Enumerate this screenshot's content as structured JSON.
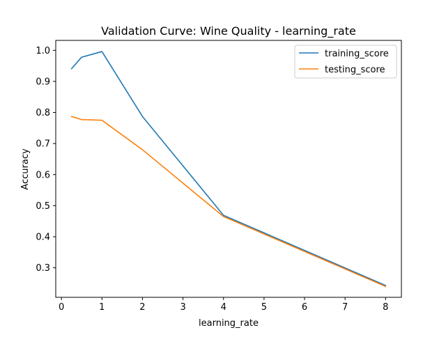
{
  "chart_data": {
    "type": "line",
    "title": "Validation Curve: Wine Quality - learning_rate",
    "xlabel": "learning_rate",
    "ylabel": "Accuracy",
    "xlim": [
      -0.14,
      8.39
    ],
    "ylim": [
      0.205,
      1.032
    ],
    "xticks": [
      0,
      1,
      2,
      3,
      4,
      5,
      6,
      7,
      8
    ],
    "xtick_labels": [
      "0",
      "1",
      "2",
      "3",
      "4",
      "5",
      "6",
      "7",
      "8"
    ],
    "yticks": [
      0.3,
      0.4,
      0.5,
      0.6,
      0.7,
      0.8,
      0.9,
      1.0
    ],
    "ytick_labels": [
      "0.3",
      "0.4",
      "0.5",
      "0.6",
      "0.7",
      "0.8",
      "0.9",
      "1.0"
    ],
    "grid": false,
    "legend_position": "top-right",
    "x": [
      0.25,
      0.5,
      1,
      2,
      4,
      8
    ],
    "series": [
      {
        "name": "training_score",
        "color": "#1f77b4",
        "values": [
          0.941,
          0.978,
          0.996,
          0.787,
          0.469,
          0.243
        ]
      },
      {
        "name": "testing_score",
        "color": "#ff7f0e",
        "values": [
          0.787,
          0.777,
          0.775,
          0.68,
          0.465,
          0.24
        ]
      }
    ]
  }
}
